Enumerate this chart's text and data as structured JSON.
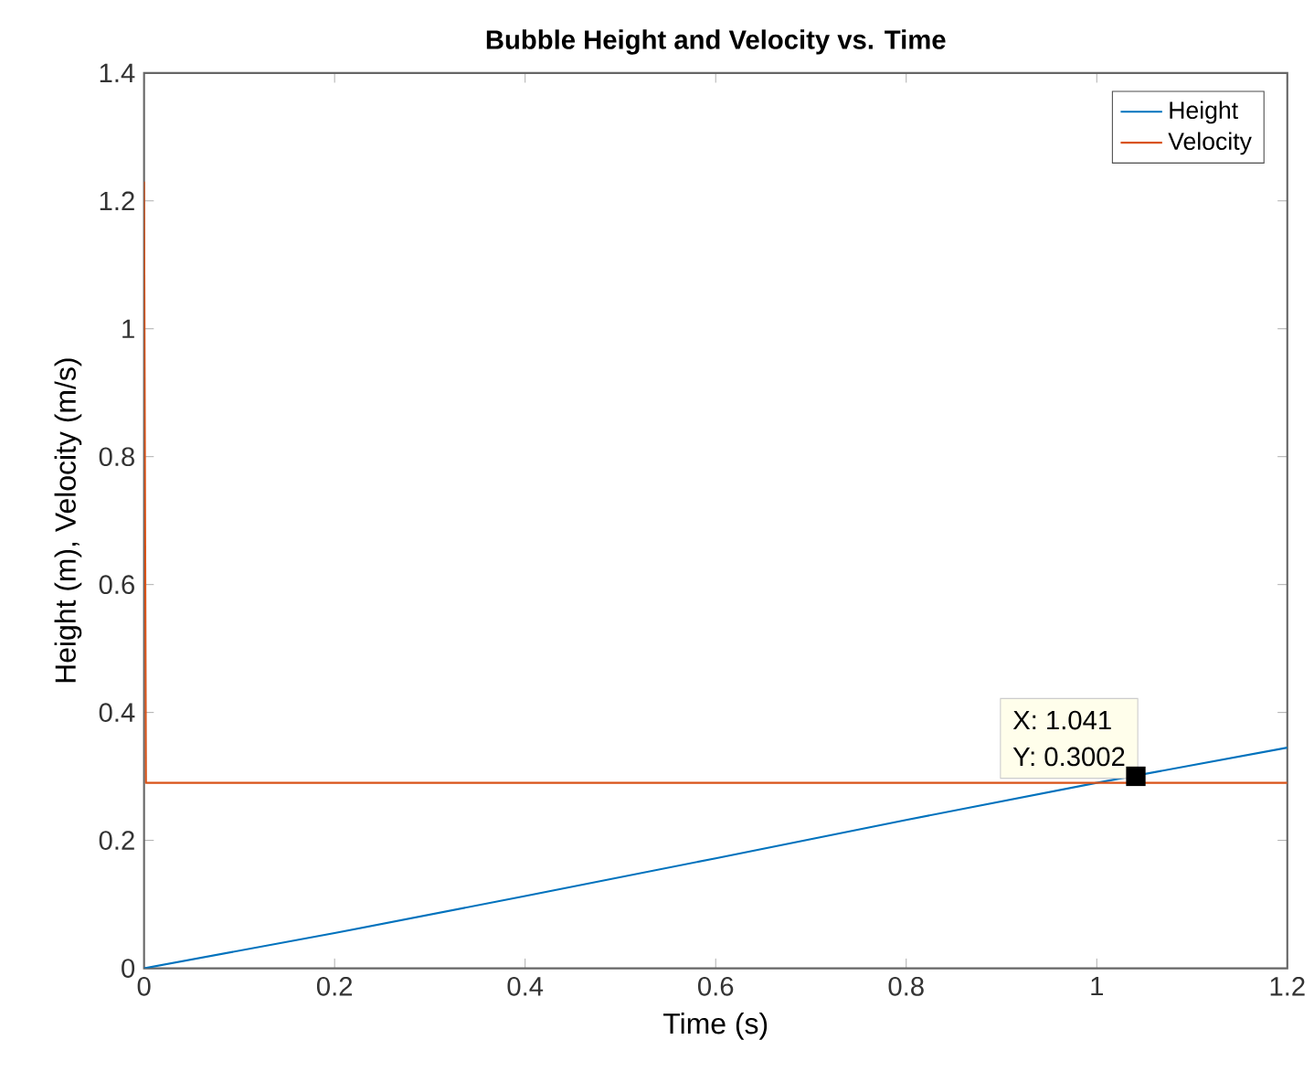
{
  "chart_data": {
    "type": "line",
    "title": "Bubble Height and Velocity vs. Time",
    "xlabel": "Time (s)",
    "ylabel": "Height (m), Velocity (m/s)",
    "xlim": [
      0,
      1.2
    ],
    "xticks": [
      0,
      0.2,
      0.4,
      0.6,
      0.8,
      1,
      1.2
    ],
    "ylim": [
      0,
      1.4
    ],
    "yticks": [
      0,
      0.2,
      0.4,
      0.6,
      0.8,
      1,
      1.2,
      1.4
    ],
    "series": [
      {
        "name": "Height",
        "color": "#0072bd",
        "x": [
          0,
          0.2,
          0.4,
          0.6,
          0.8,
          1.0,
          1.2
        ],
        "values": [
          0,
          0.055,
          0.113,
          0.172,
          0.232,
          0.29,
          0.345
        ]
      },
      {
        "name": "Velocity",
        "color": "#d95319",
        "x": [
          0,
          0.002,
          1.2
        ],
        "values": [
          1.23,
          0.29,
          0.29
        ]
      }
    ],
    "annotations": [
      {
        "text": "X: 1.041",
        "x": 1.041,
        "y": 0.3002
      },
      {
        "text": "Y: 0.3002",
        "x": 1.041,
        "y": 0.3002
      }
    ],
    "legend": "top right",
    "grid": false,
    "marker": "none",
    "line_style": "solid"
  }
}
